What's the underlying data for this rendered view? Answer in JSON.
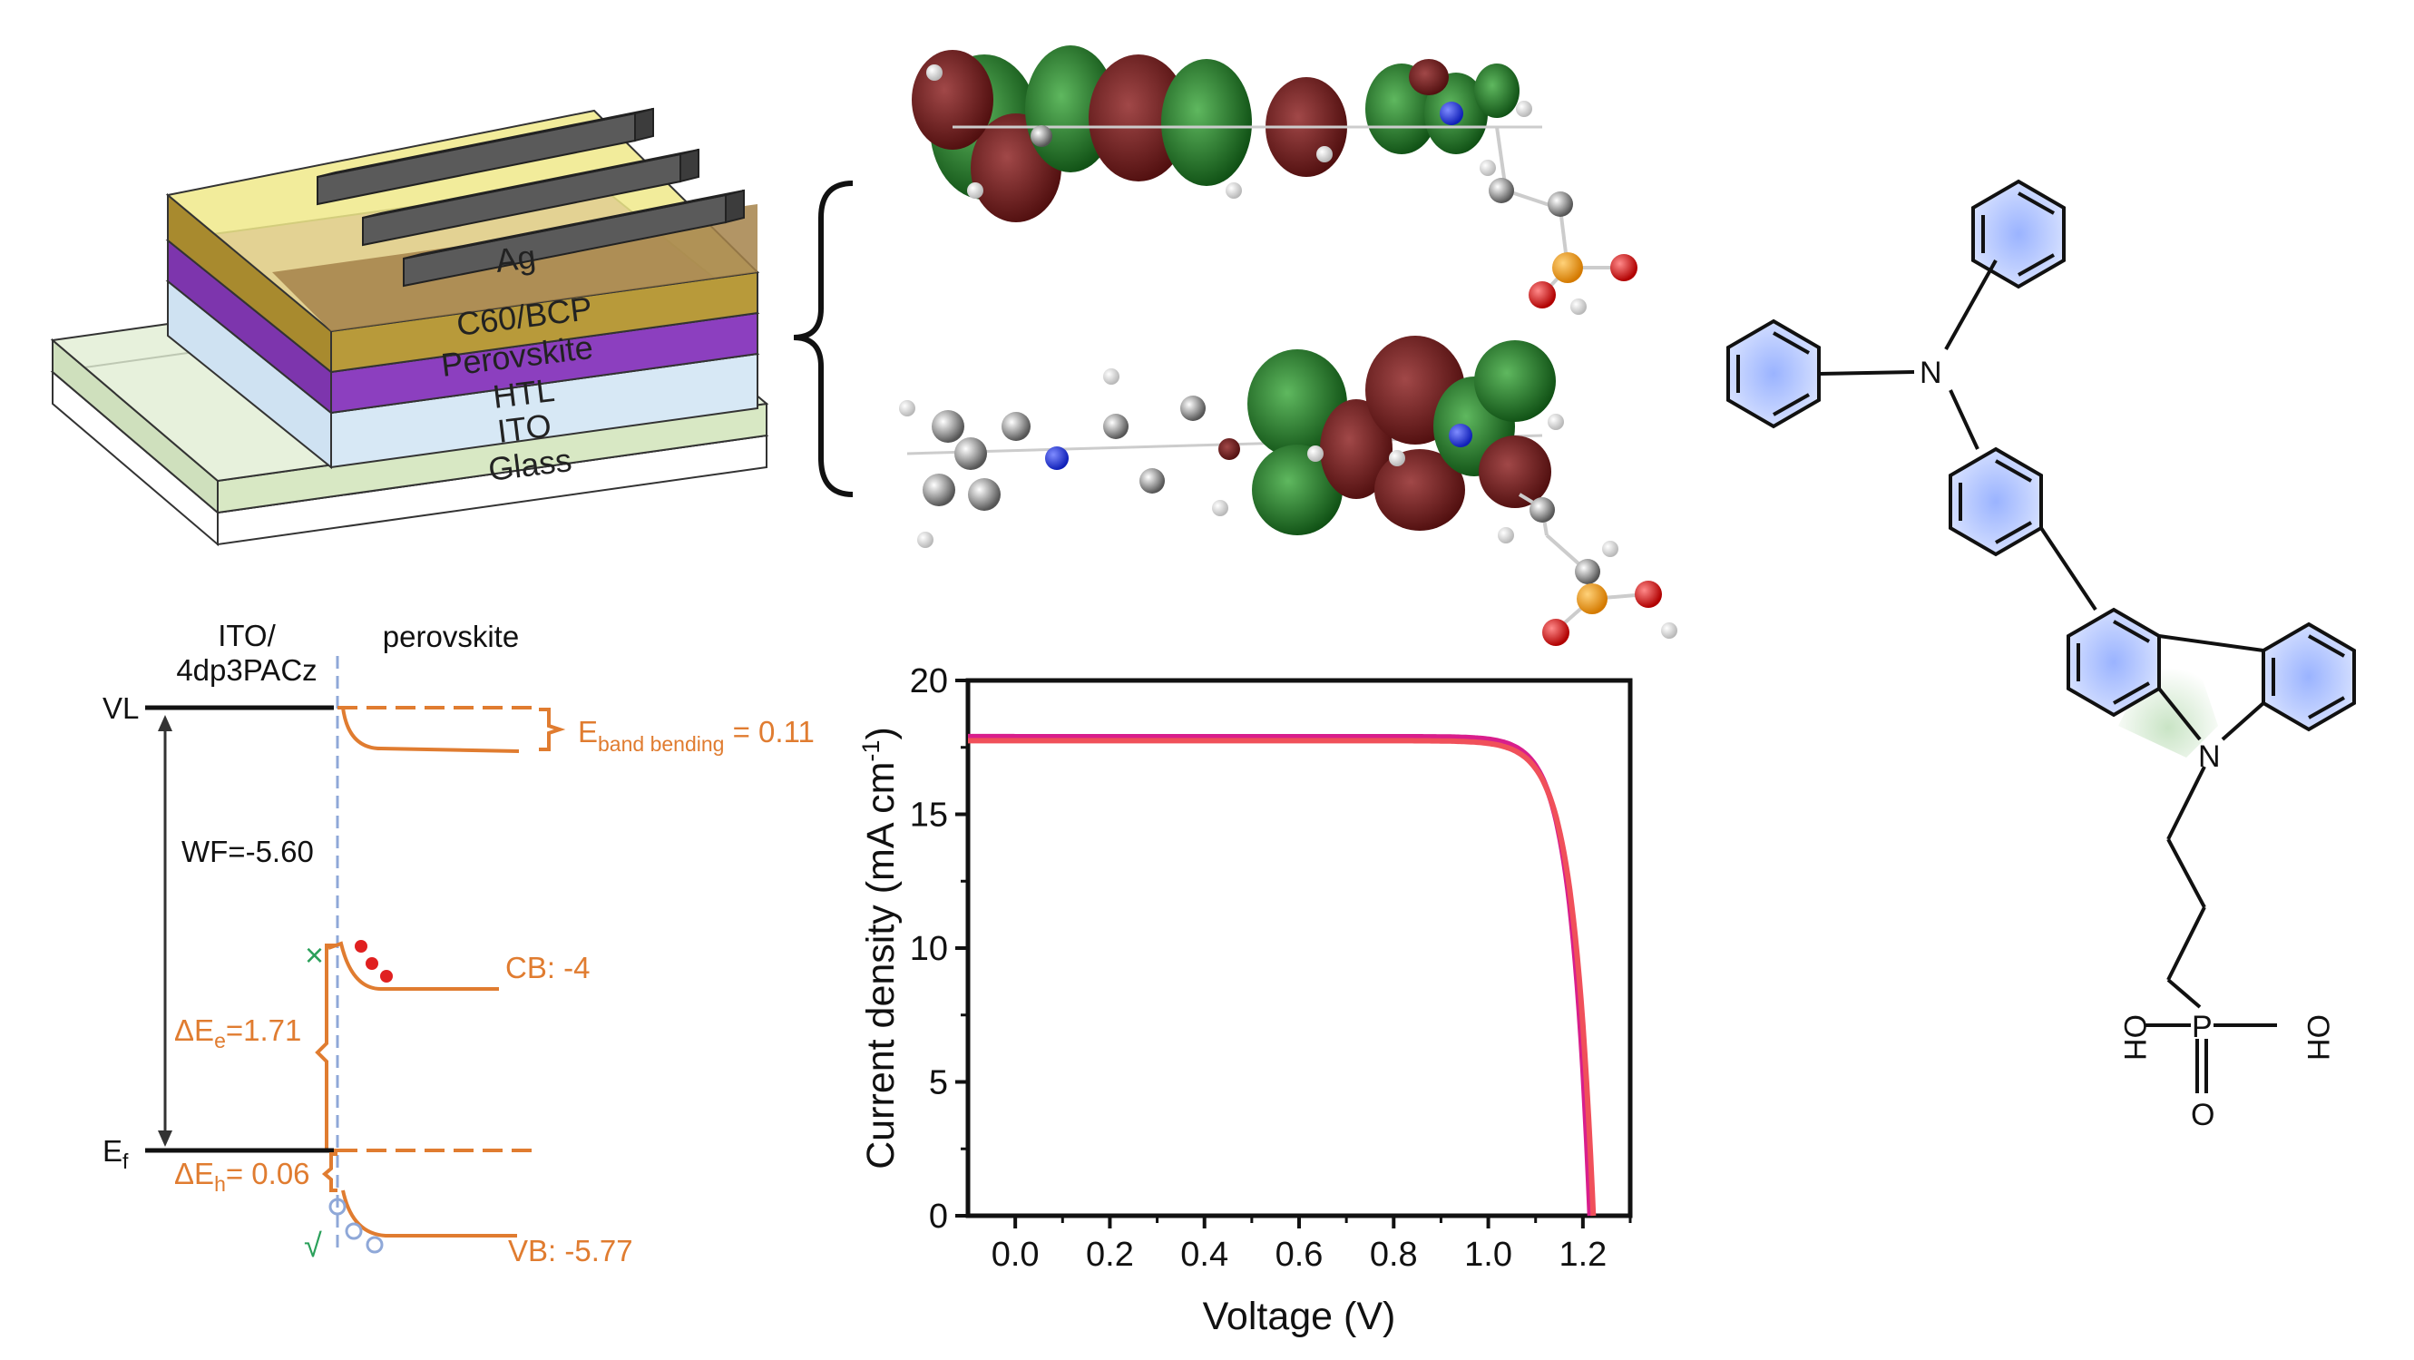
{
  "device_stack": {
    "layers": [
      "Ag",
      "C60/BCP",
      "Perovskite",
      "HTL",
      "ITO",
      "Glass"
    ]
  },
  "energy_diagram": {
    "left_header": [
      "ITO/",
      "4dp3PACz"
    ],
    "right_header": "perovskite",
    "vl_label": "VL",
    "ef_label": "E",
    "ef_sub": "f",
    "wf_label": "WF=-5.60",
    "band_bending_label": "E",
    "band_bending_sub": "band bending",
    "band_bending_value": " = 0.11",
    "cb_label": "CB: -4",
    "vb_label": "VB: -5.77",
    "de_e_main": "ΔE",
    "de_e_sub": "e",
    "de_e_value": "=1.71",
    "de_h_main": "ΔE",
    "de_h_sub": "h",
    "de_h_value": "= 0.06",
    "block_mark": "×",
    "pass_mark": "√",
    "colors": {
      "band": "#e07c30",
      "black": "#1a1a1a",
      "interface": "#8fa8d8",
      "electron": "#e02020",
      "hole": "#8fa8d8",
      "check": "#2aa05a"
    }
  },
  "chart_data": {
    "type": "line",
    "xlabel": "Voltage (V)",
    "ylabel": "Current density (mA cm",
    "ylabel_sup": "-1",
    "ylabel_close": ")",
    "xlim": [
      -0.1,
      1.3
    ],
    "ylim": [
      0,
      20
    ],
    "xticks": [
      0.0,
      0.2,
      0.4,
      0.6,
      0.8,
      1.0,
      1.2
    ],
    "xtick_labels": [
      "0.0",
      "0.2",
      "0.4",
      "0.6",
      "0.8",
      "1.0",
      "1.2"
    ],
    "yticks": [
      0,
      5,
      10,
      15,
      20
    ],
    "ytick_labels": [
      "0",
      "5",
      "10",
      "15",
      "20"
    ],
    "series": [
      {
        "color": "#d81e8c",
        "jsc": 17.9,
        "voc": 1.215,
        "k": 0.041
      },
      {
        "color": "#f0505a",
        "jsc": 17.75,
        "voc": 1.222,
        "k": 0.043
      }
    ]
  },
  "molecule": {
    "atoms": [
      "N",
      "N",
      "P",
      "OH",
      "OH",
      "O"
    ]
  }
}
